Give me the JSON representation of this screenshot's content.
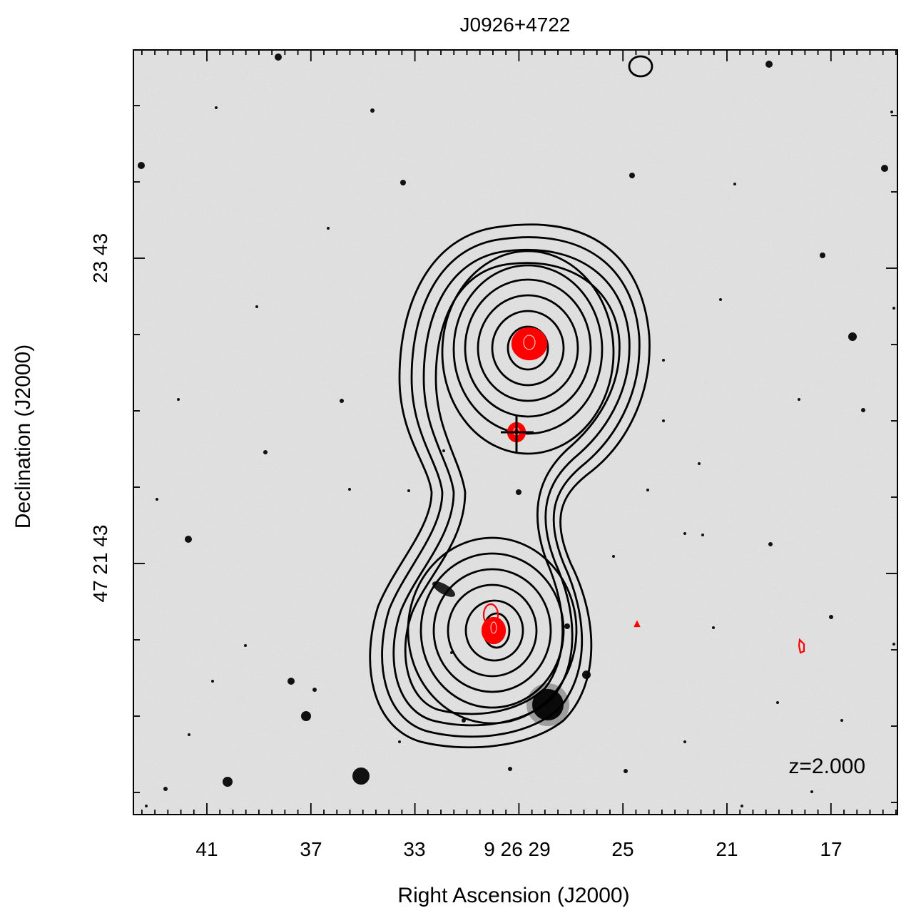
{
  "title": "J0926+4722",
  "xlabel": "Right Ascension (J2000)",
  "ylabel": "Declination (J2000)",
  "annotation": "z=2.000",
  "x_ticks": [
    "41",
    "37",
    "33",
    "9 26 29",
    "25",
    "21",
    "17"
  ],
  "y_ticks": [
    "23 43",
    "47 21 43"
  ],
  "colors": {
    "background_image": "#d6d6d6",
    "stars": "#111111",
    "radio_contours": "#000000",
    "optical_contours": "#ff0000"
  },
  "icons": {
    "marker": "crosshair-plus"
  }
}
